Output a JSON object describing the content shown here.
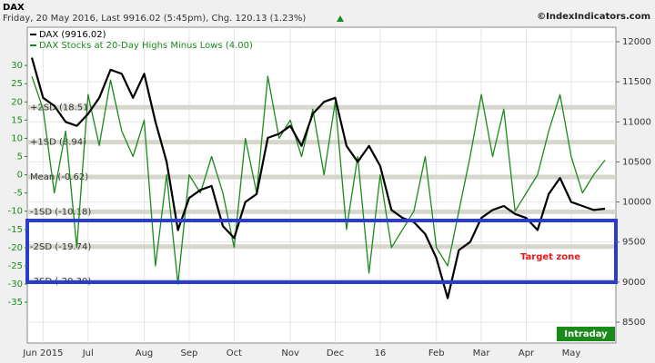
{
  "chart_data": {
    "type": "line",
    "title": "DAX",
    "subtitle": "Friday, 20 May 2016, Last 9916.02 (5:45pm), Chg. 120.13 (1.23%)",
    "source": "©IndexIndicators.com",
    "badge": "Intraday",
    "annotation": "Target zone",
    "categories": [
      null,
      "Jun 2015",
      null,
      null,
      null,
      "Jul",
      null,
      null,
      null,
      null,
      "Aug",
      null,
      null,
      null,
      "Sep",
      null,
      null,
      null,
      "Oct",
      null,
      null,
      null,
      null,
      "Nov",
      null,
      null,
      null,
      "Dec",
      null,
      null,
      null,
      "16",
      null,
      null,
      null,
      null,
      "Feb",
      null,
      null,
      null,
      "Mar",
      null,
      null,
      null,
      "Apr",
      null,
      null,
      null,
      "May",
      null,
      null,
      null
    ],
    "series": [
      {
        "name": "DAX (9916.02)",
        "color": "#000000",
        "axis": "y2",
        "values": [
          11800,
          11300,
          11200,
          11000,
          10950,
          11100,
          11300,
          11650,
          11600,
          11300,
          11600,
          11000,
          10500,
          9650,
          10050,
          10150,
          10200,
          9700,
          9550,
          10000,
          10100,
          10800,
          10850,
          10950,
          10700,
          11100,
          11250,
          11300,
          10700,
          10500,
          10700,
          10450,
          9900,
          9800,
          9750,
          9600,
          9300,
          8800,
          9400,
          9500,
          9800,
          9900,
          9950,
          9850,
          9800,
          9650,
          10100,
          10300,
          10000,
          9950,
          9900,
          9916
        ]
      },
      {
        "name": "DAX Stocks at 20-Day Highs Minus Lows (4.00)",
        "color": "#1a8a1a",
        "values": [
          27,
          18,
          -5,
          12,
          -20,
          22,
          8,
          26,
          12,
          5,
          15,
          -25,
          0,
          -30,
          0,
          -5,
          5,
          -5,
          -20,
          10,
          -5,
          27,
          10,
          15,
          5,
          18,
          0,
          20,
          -15,
          5,
          -27,
          0,
          -20,
          -15,
          -10,
          5,
          -20,
          -25,
          -10,
          5,
          22,
          5,
          18,
          -10,
          -5,
          0,
          12,
          22,
          5,
          -5,
          0,
          4
        ]
      }
    ],
    "bands": [
      {
        "label": "+2SD (18.51)",
        "value": 18.51
      },
      {
        "label": "+1SD (8.94)",
        "value": 8.94
      },
      {
        "label": "Mean (-0.62)",
        "value": -0.62
      },
      {
        "label": "-1SD (-10.18)",
        "value": -10.18
      },
      {
        "label": "-2SD (-19.74)",
        "value": -19.74
      },
      {
        "label": "-3SD (-29.30)",
        "value": -29.3
      }
    ],
    "ylim": [
      -46.2,
      40.5
    ],
    "yticks": [
      30,
      25,
      20,
      15,
      10,
      5,
      0,
      -5,
      -10,
      -15,
      -20,
      -25,
      -30,
      -35
    ],
    "y2lim": [
      8240,
      12181
    ],
    "y2ticks": [
      8500,
      9000,
      9500,
      10000,
      10500,
      11000,
      11500,
      12000
    ],
    "grid": true
  }
}
